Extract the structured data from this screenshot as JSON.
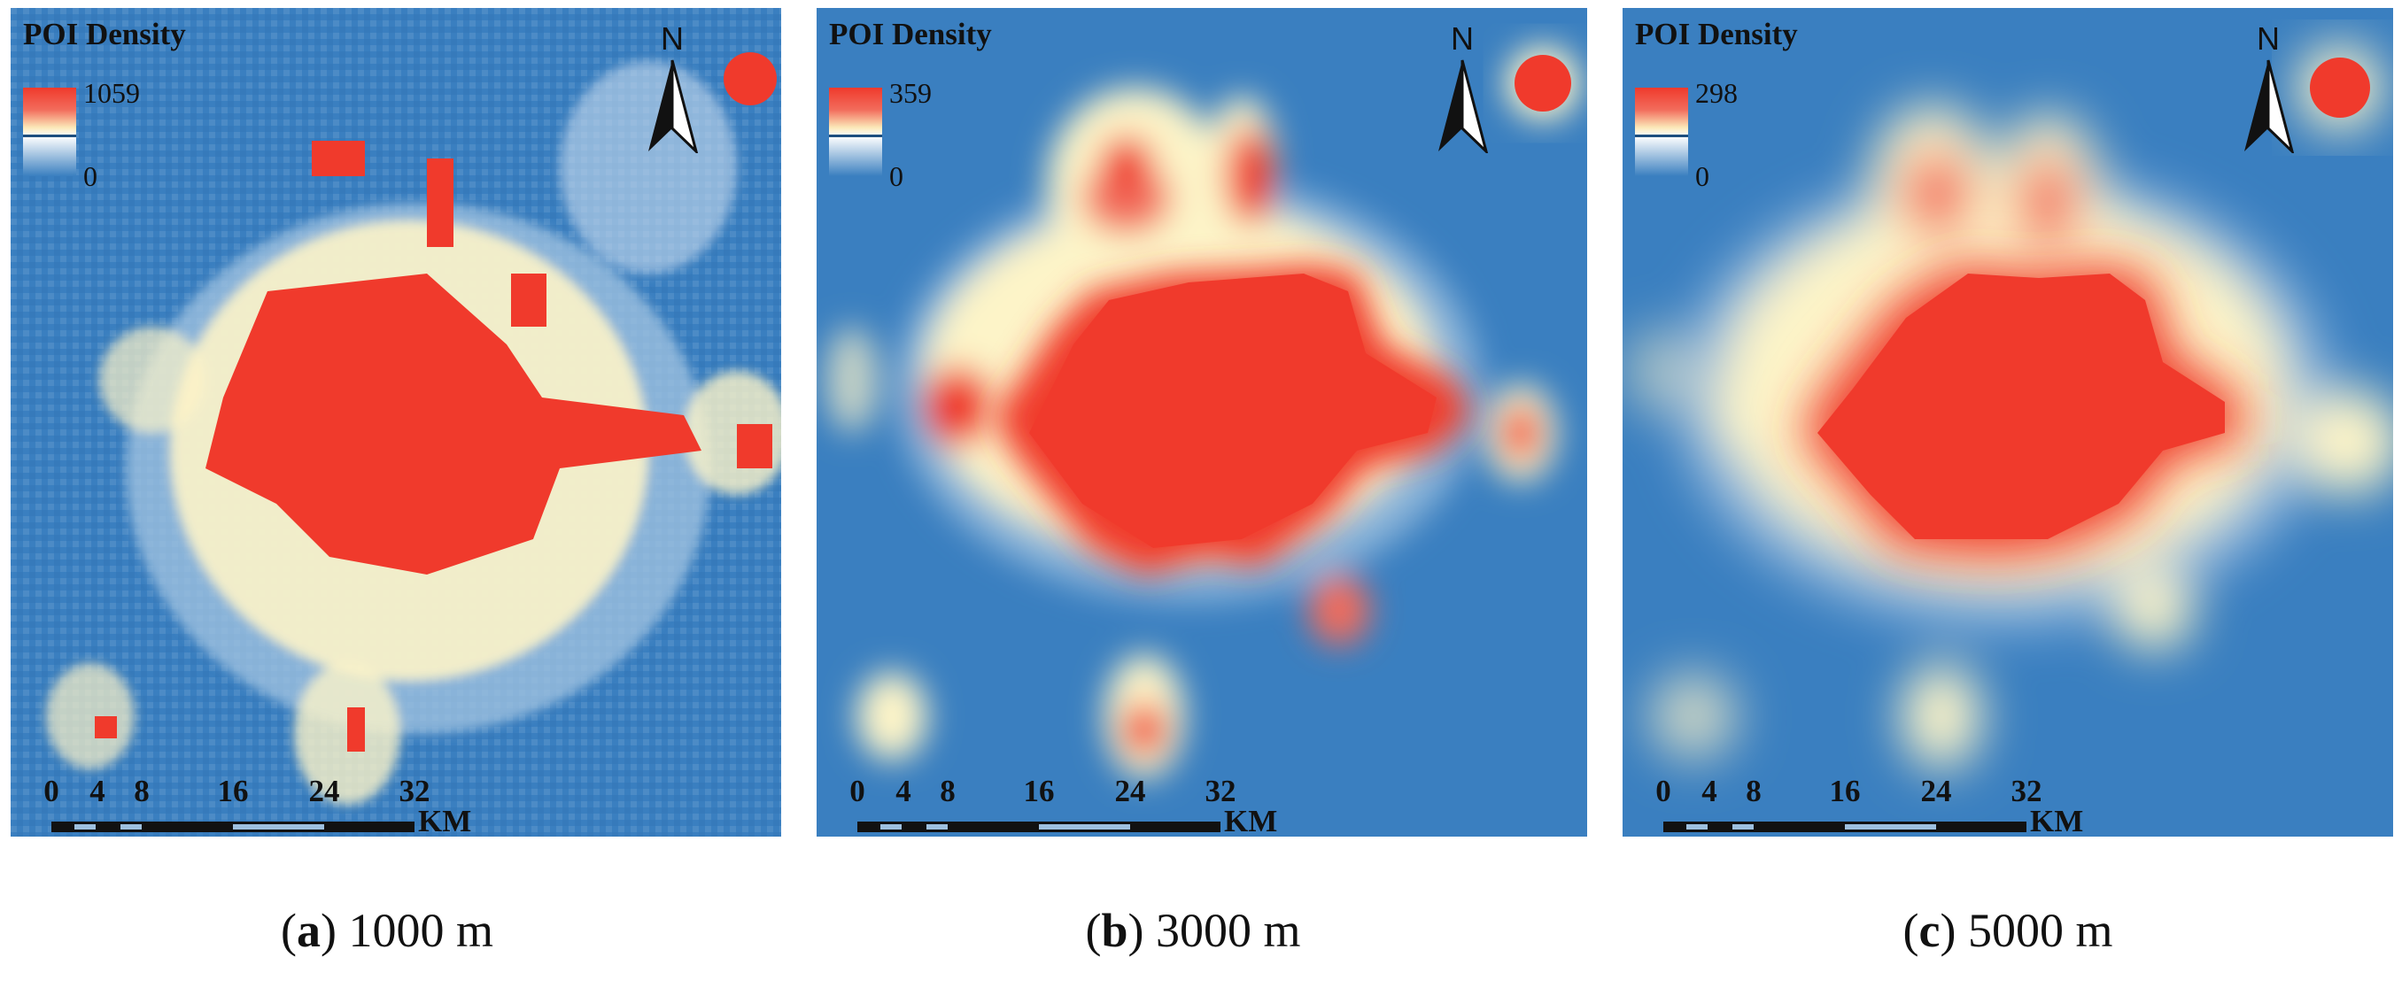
{
  "colors": {
    "high": "#f03a2c",
    "mid": "#fdf4c8",
    "low": "#3a7fc0"
  },
  "north_arrow": {
    "letter": "N",
    "icon": "north-arrow-icon"
  },
  "scale_bar": {
    "ticks": [
      "0",
      "4",
      "8",
      "16",
      "24",
      "32"
    ],
    "unit": "KM"
  },
  "panels": [
    {
      "legend_title": "POI Density",
      "legend_max": "1059",
      "legend_min": "0",
      "caption_letter": "a",
      "caption_rest": ") 1000 m",
      "caption_open": "("
    },
    {
      "legend_title": "POI Density",
      "legend_max": "359",
      "legend_min": "0",
      "caption_letter": "b",
      "caption_rest": ") 3000 m",
      "caption_open": "("
    },
    {
      "legend_title": "POI Density",
      "legend_max": "298",
      "legend_min": "0",
      "caption_letter": "c",
      "caption_rest": ") 5000 m",
      "caption_open": "("
    }
  ]
}
